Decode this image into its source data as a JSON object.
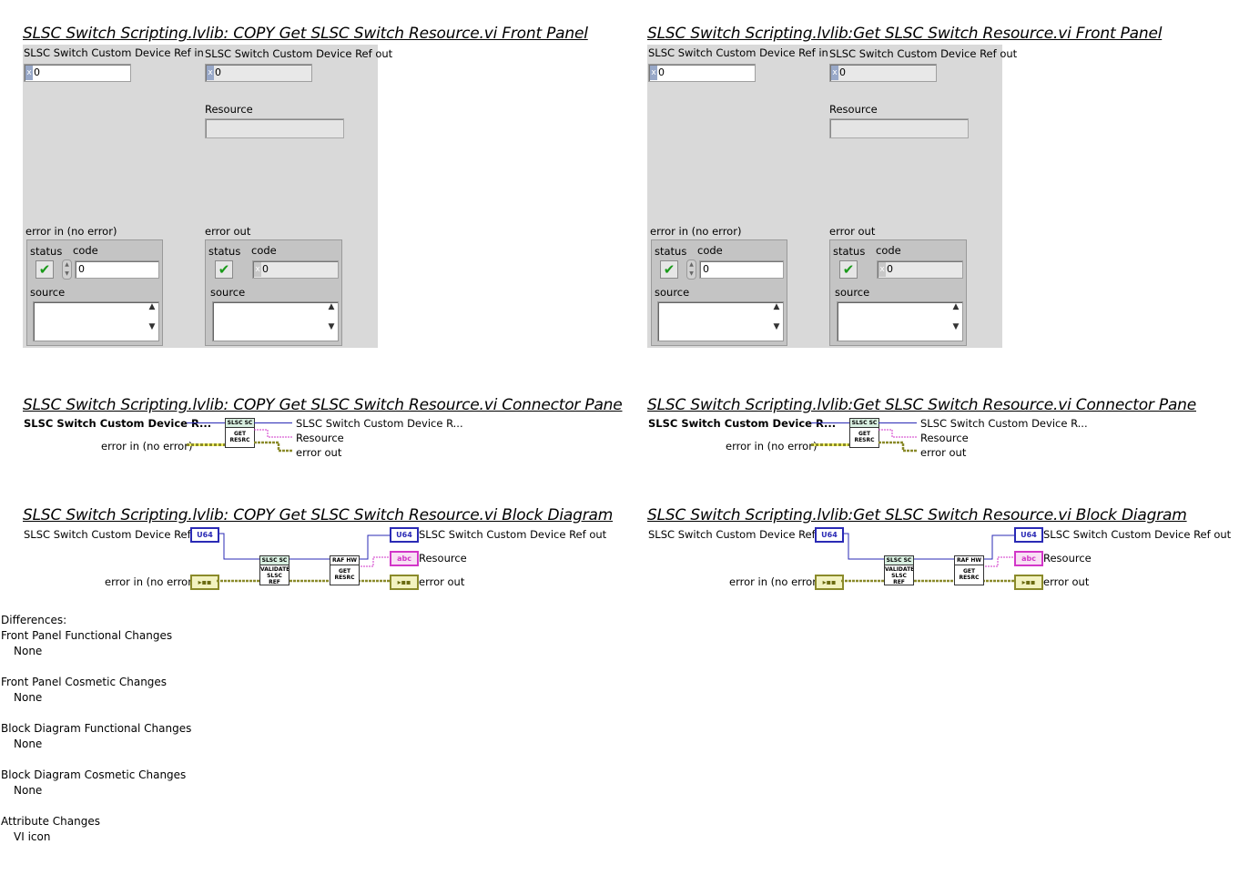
{
  "headings": {
    "left_fp": "SLSC Switch Scripting.lvlib:  COPY  Get SLSC Switch Resource.vi Front Panel",
    "right_fp": "SLSC Switch Scripting.lvlib:Get SLSC Switch Resource.vi Front Panel",
    "left_cp": "SLSC Switch Scripting.lvlib:  COPY  Get SLSC Switch Resource.vi Connector Pane",
    "right_cp": "SLSC Switch Scripting.lvlib:Get SLSC Switch Resource.vi Connector Pane",
    "left_bd": "SLSC Switch Scripting.lvlib:  COPY  Get SLSC Switch Resource.vi Block Diagram",
    "right_bd": "SLSC Switch Scripting.lvlib:Get SLSC Switch Resource.vi Block Diagram"
  },
  "front_panel": {
    "ref_in_label": "SLSC Switch Custom Device Ref in",
    "ref_out_label": "SLSC Switch Custom Device Ref out",
    "radix": "x",
    "ref_in_value": "0",
    "ref_out_value": "0",
    "resource_label": "Resource",
    "error_in_label": "error in (no error)",
    "error_out_label": "error out",
    "status_label": "status",
    "code_label": "code",
    "code_value": "0",
    "source_label": "source",
    "check_glyph": "✔",
    "scroll_up": "▲",
    "scroll_down": "▼"
  },
  "connector_pane": {
    "left_input_1": "SLSC Switch Custom Device R...",
    "left_input_2": "error in (no error)",
    "right_output_1": "SLSC Switch Custom Device R...",
    "right_output_2": "Resource",
    "right_output_3": "error out",
    "icon_top": "SLSC SC",
    "icon_bottom": "GET RESRC"
  },
  "block_diagram": {
    "ref_in_label": "SLSC Switch Custom Device Ref in",
    "error_in_label": "error in (no error)",
    "ref_out_label": "SLSC Switch Custom Device Ref out",
    "resource_label": "Resource",
    "error_out_label": "error out",
    "u64_term": "U64",
    "abc_term": "abc",
    "err_term": "▸▪▪",
    "validate_top": "SLSC SC",
    "validate_bottom": "VALIDATE SLSC REF",
    "raf_top": "RAF HW",
    "raf_bottom": "GET RESRC"
  },
  "differences": {
    "title": "Differences:",
    "items": [
      {
        "heading": "Front Panel Functional Changes",
        "value": "None"
      },
      {
        "heading": "Front Panel Cosmetic Changes",
        "value": "None"
      },
      {
        "heading": "Block Diagram Functional Changes",
        "value": "None"
      },
      {
        "heading": "Block Diagram Cosmetic Changes",
        "value": "None"
      },
      {
        "heading": "Attribute Changes",
        "value": "VI icon"
      }
    ]
  },
  "colors": {
    "panel_bg": "#d9d9d9",
    "ref_wire": "#2a2ab5",
    "string_wire": "#d236c8",
    "error_wire": "#8a8a2a"
  }
}
